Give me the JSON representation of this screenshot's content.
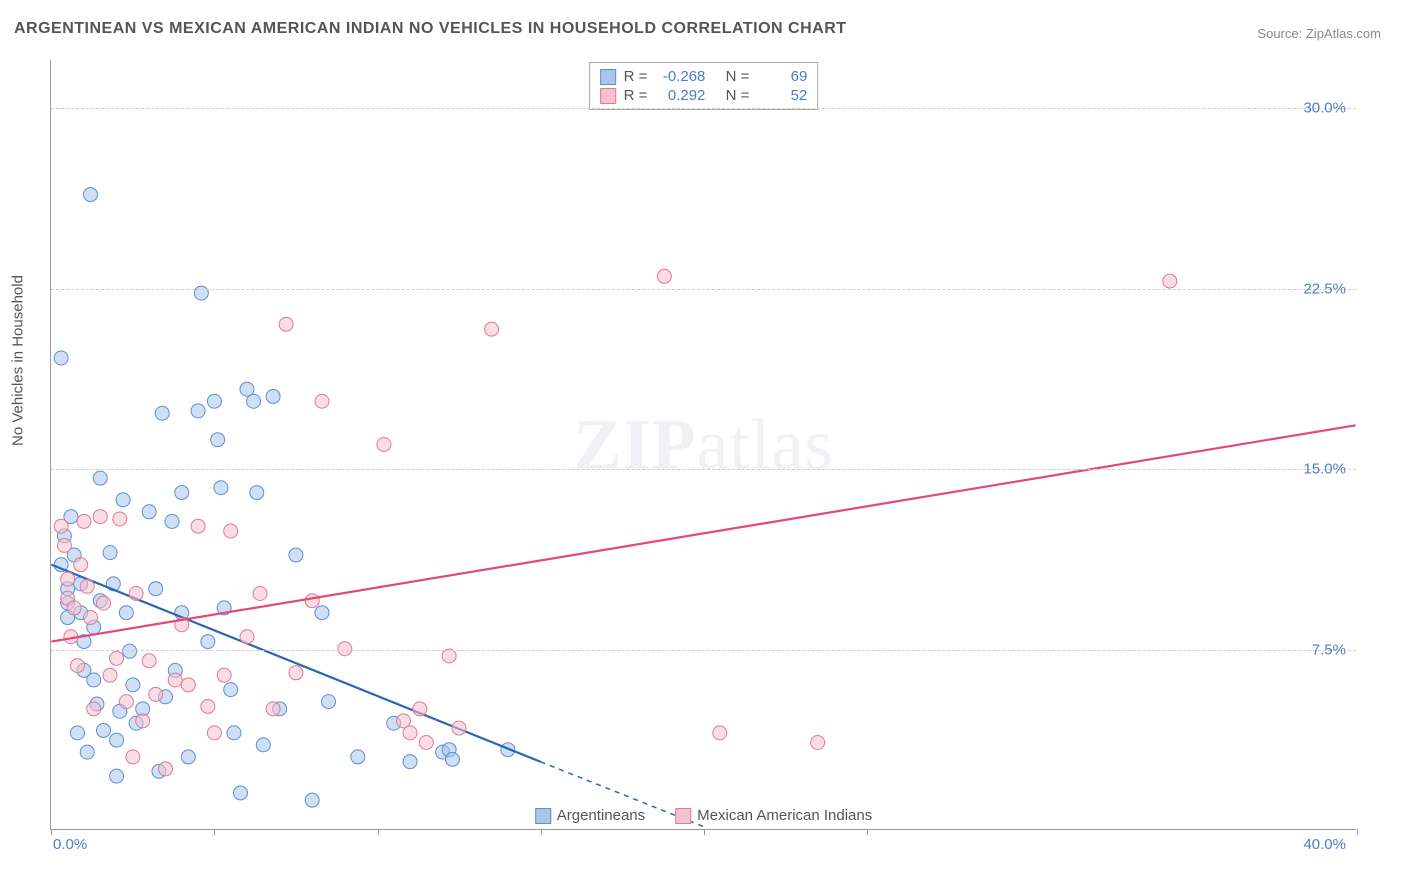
{
  "title": "ARGENTINEAN VS MEXICAN AMERICAN INDIAN NO VEHICLES IN HOUSEHOLD CORRELATION CHART",
  "source_label": "Source:",
  "source_name": "ZipAtlas.com",
  "ylabel": "No Vehicles in Household",
  "watermark_a": "ZIP",
  "watermark_b": "atlas",
  "chart": {
    "type": "scatter-with-trend",
    "background_color": "#ffffff",
    "grid_color": "#cccccc",
    "axis_color": "#999999",
    "tick_label_color": "#4f7cc4",
    "label_fontsize": 15,
    "title_fontsize": 16,
    "xlim": [
      0,
      40
    ],
    "ylim": [
      0,
      32
    ],
    "xticks": [
      0,
      5,
      10,
      15,
      20,
      25,
      40
    ],
    "xtick_labels": {
      "0": "0.0%",
      "40": "40.0%"
    },
    "yticks": [
      7.5,
      15.0,
      22.5,
      30.0
    ],
    "ytick_labels": [
      "7.5%",
      "15.0%",
      "22.5%",
      "30.0%"
    ],
    "marker_radius": 7,
    "marker_opacity": 0.55,
    "line_width": 2.2
  },
  "series": [
    {
      "name": "Argentineans",
      "color_fill": "#a9c6eb",
      "color_stroke": "#5a8fd6",
      "trend_color": "#2e64b5",
      "R": "-0.268",
      "N": "69",
      "trend": {
        "x1": 0,
        "y1": 11.0,
        "x2": 15,
        "y2": 2.8,
        "dash_extend_x": 20,
        "dash_extend_y": 0.1
      },
      "points": [
        [
          0.3,
          19.6
        ],
        [
          0.3,
          11.0
        ],
        [
          0.4,
          12.2
        ],
        [
          0.5,
          8.8
        ],
        [
          0.5,
          10.0
        ],
        [
          0.5,
          9.4
        ],
        [
          0.6,
          13.0
        ],
        [
          0.7,
          11.4
        ],
        [
          0.8,
          4.0
        ],
        [
          0.9,
          10.2
        ],
        [
          0.9,
          9.0
        ],
        [
          1.0,
          6.6
        ],
        [
          1.0,
          7.8
        ],
        [
          1.1,
          3.2
        ],
        [
          1.2,
          26.4
        ],
        [
          1.3,
          8.4
        ],
        [
          1.3,
          6.2
        ],
        [
          1.4,
          5.2
        ],
        [
          1.5,
          14.6
        ],
        [
          1.5,
          9.5
        ],
        [
          1.6,
          4.1
        ],
        [
          1.8,
          11.5
        ],
        [
          1.9,
          10.2
        ],
        [
          2.0,
          3.7
        ],
        [
          2.0,
          2.2
        ],
        [
          2.1,
          4.9
        ],
        [
          2.2,
          13.7
        ],
        [
          2.3,
          9.0
        ],
        [
          2.4,
          7.4
        ],
        [
          2.5,
          6.0
        ],
        [
          2.6,
          4.4
        ],
        [
          2.8,
          5.0
        ],
        [
          3.0,
          13.2
        ],
        [
          3.2,
          10.0
        ],
        [
          3.3,
          2.4
        ],
        [
          3.4,
          17.3
        ],
        [
          3.5,
          5.5
        ],
        [
          3.7,
          12.8
        ],
        [
          3.8,
          6.6
        ],
        [
          4.0,
          14.0
        ],
        [
          4.0,
          9.0
        ],
        [
          4.2,
          3.0
        ],
        [
          4.5,
          17.4
        ],
        [
          4.6,
          22.3
        ],
        [
          4.8,
          7.8
        ],
        [
          5.0,
          17.8
        ],
        [
          5.1,
          16.2
        ],
        [
          5.2,
          14.2
        ],
        [
          5.3,
          9.2
        ],
        [
          5.5,
          5.8
        ],
        [
          5.6,
          4.0
        ],
        [
          5.8,
          1.5
        ],
        [
          6.0,
          18.3
        ],
        [
          6.2,
          17.8
        ],
        [
          6.3,
          14.0
        ],
        [
          6.5,
          3.5
        ],
        [
          6.8,
          18.0
        ],
        [
          7.0,
          5.0
        ],
        [
          7.5,
          11.4
        ],
        [
          8.0,
          1.2
        ],
        [
          8.3,
          9.0
        ],
        [
          8.5,
          5.3
        ],
        [
          9.4,
          3.0
        ],
        [
          10.5,
          4.4
        ],
        [
          11.0,
          2.8
        ],
        [
          12.0,
          3.2
        ],
        [
          12.2,
          3.3
        ],
        [
          12.3,
          2.9
        ],
        [
          14.0,
          3.3
        ]
      ]
    },
    {
      "name": "Mexican American Indians",
      "color_fill": "#f3c3cd",
      "color_stroke": "#e37795",
      "trend_color": "#e04a78",
      "R": "0.292",
      "N": "52",
      "trend": {
        "x1": 0,
        "y1": 7.8,
        "x2": 40,
        "y2": 16.8
      },
      "points": [
        [
          0.3,
          12.6
        ],
        [
          0.4,
          11.8
        ],
        [
          0.5,
          9.6
        ],
        [
          0.5,
          10.4
        ],
        [
          0.6,
          8.0
        ],
        [
          0.7,
          9.2
        ],
        [
          0.8,
          6.8
        ],
        [
          0.9,
          11.0
        ],
        [
          1.0,
          12.8
        ],
        [
          1.1,
          10.1
        ],
        [
          1.2,
          8.8
        ],
        [
          1.3,
          5.0
        ],
        [
          1.5,
          13.0
        ],
        [
          1.6,
          9.4
        ],
        [
          1.8,
          6.4
        ],
        [
          2.0,
          7.1
        ],
        [
          2.1,
          12.9
        ],
        [
          2.3,
          5.3
        ],
        [
          2.5,
          3.0
        ],
        [
          2.6,
          9.8
        ],
        [
          2.8,
          4.5
        ],
        [
          3.0,
          7.0
        ],
        [
          3.2,
          5.6
        ],
        [
          3.5,
          2.5
        ],
        [
          3.8,
          6.2
        ],
        [
          4.0,
          8.5
        ],
        [
          4.2,
          6.0
        ],
        [
          4.5,
          12.6
        ],
        [
          4.8,
          5.1
        ],
        [
          5.0,
          4.0
        ],
        [
          5.3,
          6.4
        ],
        [
          5.5,
          12.4
        ],
        [
          6.0,
          8.0
        ],
        [
          6.4,
          9.8
        ],
        [
          6.8,
          5.0
        ],
        [
          7.2,
          21.0
        ],
        [
          7.5,
          6.5
        ],
        [
          8.0,
          9.5
        ],
        [
          8.3,
          17.8
        ],
        [
          9.0,
          7.5
        ],
        [
          10.2,
          16.0
        ],
        [
          10.8,
          4.5
        ],
        [
          11.0,
          4.0
        ],
        [
          11.3,
          5.0
        ],
        [
          11.5,
          3.6
        ],
        [
          12.2,
          7.2
        ],
        [
          12.5,
          4.2
        ],
        [
          13.5,
          20.8
        ],
        [
          18.8,
          23.0
        ],
        [
          20.5,
          4.0
        ],
        [
          23.5,
          3.6
        ],
        [
          34.3,
          22.8
        ]
      ]
    }
  ],
  "stats_legend_labels": {
    "R": "R =",
    "N": "N ="
  },
  "bottom_legend_labels": [
    "Argentineans",
    "Mexican American Indians"
  ]
}
